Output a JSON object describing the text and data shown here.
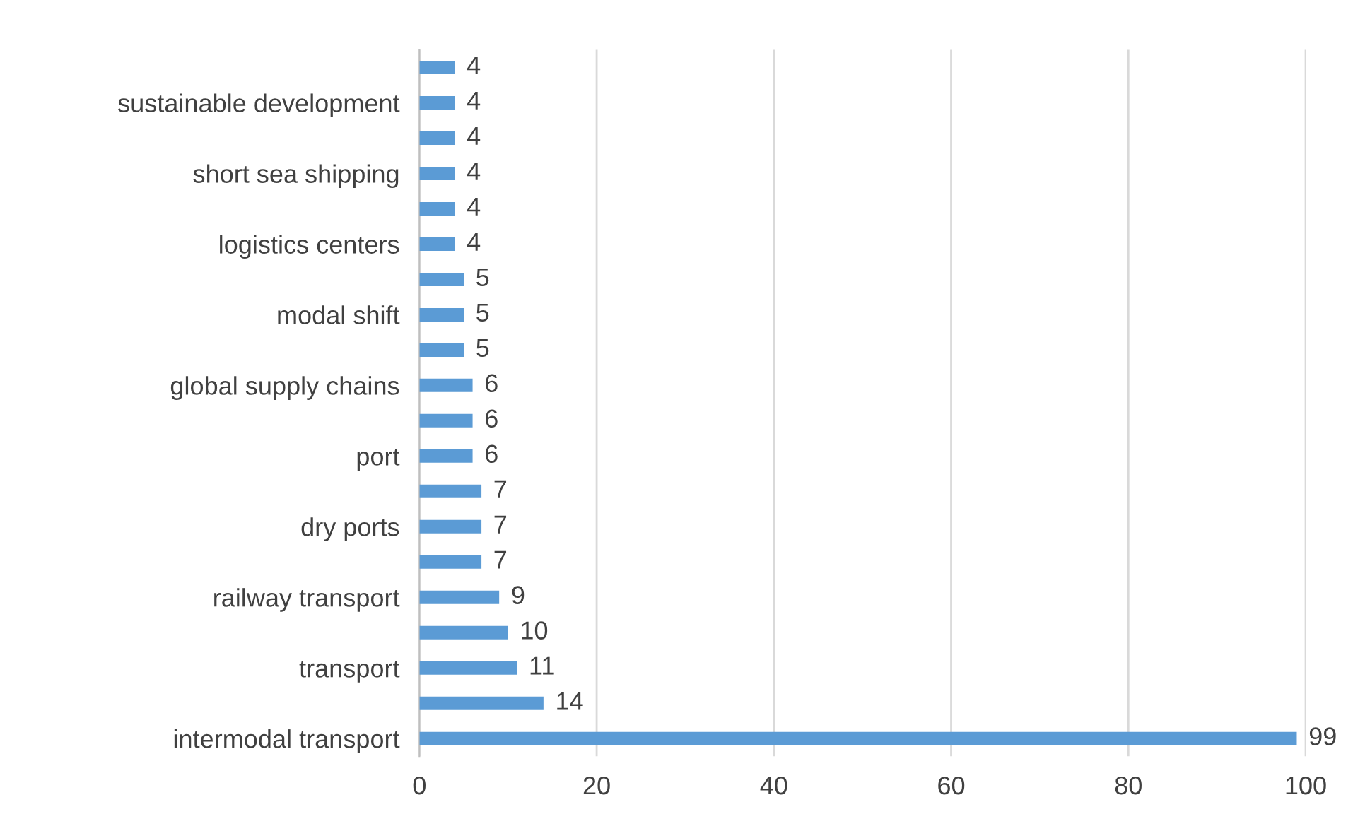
{
  "chart_data": {
    "type": "bar",
    "orientation": "horizontal",
    "categories": [
      null,
      "sustainable development",
      null,
      "short sea shipping",
      null,
      "logistics centers",
      null,
      "modal shift",
      null,
      "global supply chains",
      null,
      "port",
      null,
      "dry ports",
      null,
      "railway transport",
      null,
      "transport",
      null,
      "intermodal transport"
    ],
    "values": [
      4,
      4,
      4,
      4,
      4,
      4,
      5,
      5,
      5,
      6,
      6,
      6,
      7,
      7,
      7,
      9,
      10,
      11,
      14,
      99
    ],
    "color": "#5b9bd5",
    "xlim": [
      0,
      100
    ],
    "xticks": [
      0,
      20,
      40,
      60,
      80,
      100
    ],
    "grid": "x",
    "data_labels": true
  }
}
